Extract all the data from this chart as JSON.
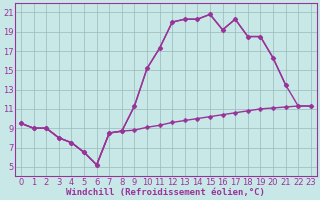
{
  "background_color": "#c8e8e8",
  "line_color": "#993399",
  "xlabel": "Windchill (Refroidissement éolien,°C)",
  "xlim": [
    -0.5,
    23.5
  ],
  "ylim": [
    4,
    22
  ],
  "yticks": [
    5,
    7,
    9,
    11,
    13,
    15,
    17,
    19,
    21
  ],
  "xticks": [
    0,
    1,
    2,
    3,
    4,
    5,
    6,
    7,
    8,
    9,
    10,
    11,
    12,
    13,
    14,
    15,
    16,
    17,
    18,
    19,
    20,
    21,
    22,
    23
  ],
  "line1_x": [
    0,
    1,
    2,
    3,
    4,
    5,
    6,
    7,
    8,
    9,
    10,
    11,
    12,
    13,
    14,
    15,
    16,
    17,
    18,
    19,
    20,
    21
  ],
  "line1_y": [
    9.5,
    9.0,
    9.0,
    8.0,
    7.5,
    6.5,
    5.2,
    8.5,
    8.7,
    11.3,
    15.2,
    17.3,
    20.0,
    20.3,
    20.3,
    20.8,
    19.2,
    20.3,
    18.5,
    18.5,
    16.3,
    13.5
  ],
  "line2_x": [
    0,
    1,
    2,
    3,
    4,
    5,
    6,
    7,
    8,
    9,
    10,
    11,
    12,
    13,
    14,
    15,
    16,
    17,
    18,
    19,
    20,
    21,
    22,
    23
  ],
  "line2_y": [
    9.5,
    9.0,
    9.0,
    8.0,
    7.5,
    6.5,
    5.2,
    8.5,
    8.7,
    8.8,
    9.1,
    9.3,
    9.6,
    9.8,
    10.0,
    10.2,
    10.4,
    10.6,
    10.8,
    11.0,
    11.1,
    11.2,
    11.3,
    11.3
  ],
  "line3_x": [
    0,
    1,
    2,
    3,
    4,
    5,
    6,
    7,
    8,
    9,
    10,
    11,
    12,
    13,
    14,
    15,
    16,
    17,
    18,
    19,
    20,
    21,
    22,
    23
  ],
  "line3_y": [
    9.5,
    9.0,
    9.0,
    8.0,
    7.5,
    6.5,
    5.2,
    8.5,
    8.7,
    11.3,
    15.2,
    17.3,
    20.0,
    20.3,
    20.3,
    20.8,
    19.2,
    20.3,
    18.5,
    18.5,
    16.3,
    13.5,
    11.3,
    11.3
  ],
  "marker": "D",
  "marker_size": 2.5,
  "line_width": 1.0,
  "grid_color": "#9ababa",
  "xlabel_fontsize": 6.5,
  "tick_fontsize": 6.0,
  "tick_color": "#993399",
  "spine_color": "#993399"
}
